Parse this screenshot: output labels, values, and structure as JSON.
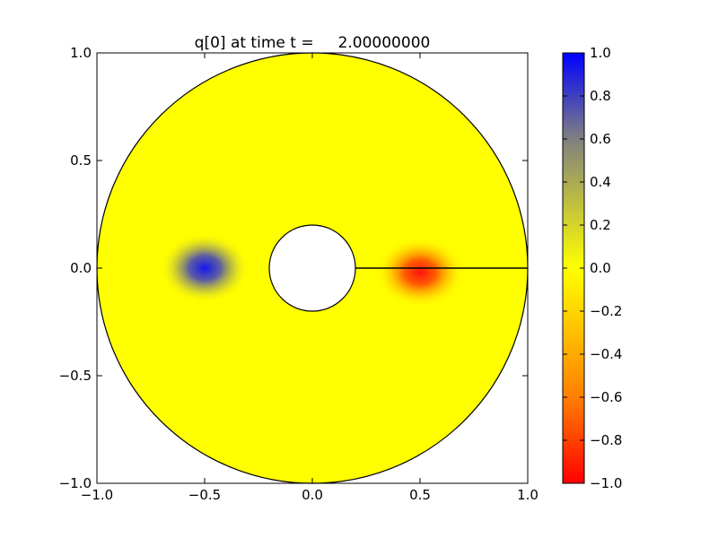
{
  "chart_data": {
    "type": "heatmap",
    "title": "q[0] at time t =     2.00000000",
    "xlabel": "",
    "ylabel": "",
    "xlim": [
      -1.0,
      1.0
    ],
    "ylim": [
      -1.0,
      1.0
    ],
    "x_ticks": [
      -1.0,
      -0.5,
      0.0,
      0.5,
      1.0
    ],
    "x_tick_labels": [
      "−1.0",
      "−0.5",
      "0.0",
      "0.5",
      "1.0"
    ],
    "y_ticks": [
      -1.0,
      -0.5,
      0.0,
      0.5,
      1.0
    ],
    "y_tick_labels": [
      "−1.0",
      "−0.5",
      "0.0",
      "0.5",
      "1.0"
    ],
    "grid": false,
    "domain": {
      "shape": "annulus",
      "inner_radius": 0.2,
      "outer_radius": 1.0,
      "cut_line": {
        "from": [
          0.2,
          0.0
        ],
        "to": [
          1.0,
          0.0
        ]
      }
    },
    "features": [
      {
        "name": "",
        "center": [
          -0.5,
          0.0
        ],
        "peak_value": 1.0,
        "spread": 0.11
      },
      {
        "name": "",
        "center": [
          0.5,
          -0.02
        ],
        "peak_value": -1.0,
        "spread": 0.11
      }
    ],
    "colorbar": {
      "min": -1.0,
      "max": 1.0,
      "ticks": [
        -1.0,
        -0.8,
        -0.6,
        -0.4,
        -0.2,
        0.0,
        0.2,
        0.4,
        0.6,
        0.8,
        1.0
      ],
      "tick_labels": [
        "−1.0",
        "−0.8",
        "−0.6",
        "−0.4",
        "−0.2",
        "0.0",
        "0.2",
        "0.4",
        "0.6",
        "0.8",
        "1.0"
      ],
      "colors": {
        "at_minus_1": "#ff0000",
        "at_minus_0_6": "#ff7f00",
        "at_0": "#ffff00",
        "at_0_6": "#808080",
        "at_plus_1": "#0000ff"
      },
      "placement": "right"
    }
  }
}
